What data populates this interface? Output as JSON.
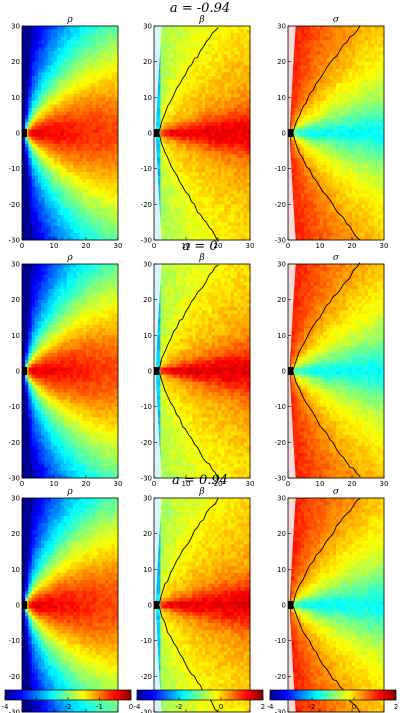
{
  "chart_data": {
    "type": "heatmap",
    "variables": [
      "ρ",
      "β",
      "σ"
    ],
    "rows": [
      {
        "title": "a = -0.94",
        "spin": -0.94
      },
      {
        "title": "a = 0",
        "spin": 0
      },
      {
        "title": "a = 0.94",
        "spin": 0.94
      }
    ],
    "x_ticks": [
      0,
      10,
      20,
      30
    ],
    "y_ticks": [
      30,
      20,
      10,
      0,
      -10,
      -20,
      -30
    ],
    "xlim": [
      0,
      30
    ],
    "ylim": [
      -30,
      30
    ],
    "colormap": "jet",
    "colorbars": [
      {
        "variable": "ρ",
        "range": [
          -4,
          0
        ],
        "ticks": [
          -4,
          -3,
          -2,
          -1,
          0
        ]
      },
      {
        "variable": "β",
        "range": [
          -4,
          2
        ],
        "ticks": [
          -4,
          -2,
          0,
          2
        ]
      },
      {
        "variable": "σ",
        "range": [
          -4,
          2
        ],
        "ticks": [
          -4,
          -2,
          0,
          2
        ]
      }
    ],
    "contour_color": "#000000",
    "grid": false
  }
}
